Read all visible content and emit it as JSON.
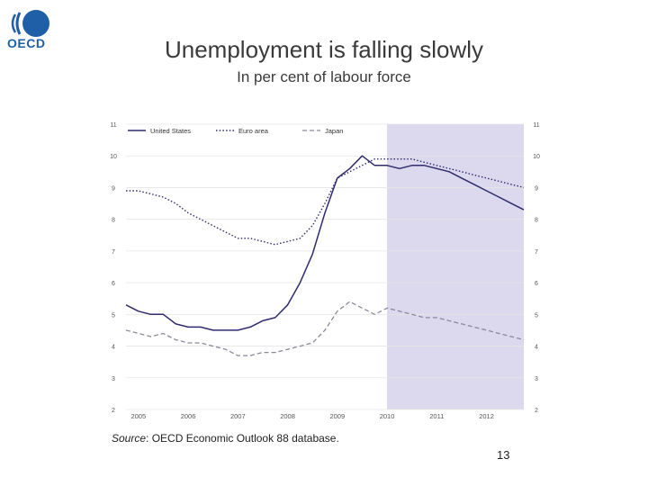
{
  "slide": {
    "title": "Unemployment is falling slowly",
    "subtitle": "In per cent of labour force",
    "source_label": "Source",
    "source_text": ": OECD Economic Outlook 88 database.",
    "page_number": "13",
    "logo_text": "OECD"
  },
  "colors": {
    "us": "#2e2c6e",
    "euro": "#2e2c6e",
    "japan": "#8a8a9a",
    "projection_shade": "#dcd8ee",
    "logo": "#1f5fa8"
  },
  "chart_data": {
    "type": "line",
    "title": "",
    "xlabel": "",
    "ylabel": "",
    "ylim": [
      2,
      11
    ],
    "yticks": [
      2,
      3,
      4,
      5,
      6,
      7,
      8,
      9,
      10,
      11
    ],
    "year_ticks": [
      "2005",
      "2006",
      "2007",
      "2008",
      "2009",
      "2010",
      "2011",
      "2012"
    ],
    "xlim": [
      2004.75,
      2012.75
    ],
    "projection_start": 2010.0,
    "legend_position": "top",
    "grid": true,
    "series": [
      {
        "name": "United States",
        "style": "solid",
        "x": [
          2004.75,
          2005.0,
          2005.25,
          2005.5,
          2005.75,
          2006.0,
          2006.25,
          2006.5,
          2006.75,
          2007.0,
          2007.25,
          2007.5,
          2007.75,
          2008.0,
          2008.25,
          2008.5,
          2008.75,
          2009.0,
          2009.25,
          2009.5,
          2009.75,
          2010.0,
          2010.25,
          2010.5,
          2010.75,
          2011.0,
          2011.25,
          2011.5,
          2011.75,
          2012.0,
          2012.25,
          2012.5,
          2012.75
        ],
        "values": [
          5.3,
          5.1,
          5.0,
          5.0,
          4.7,
          4.6,
          4.6,
          4.5,
          4.5,
          4.5,
          4.6,
          4.8,
          4.9,
          5.3,
          6.0,
          6.9,
          8.2,
          9.3,
          9.6,
          10.0,
          9.7,
          9.7,
          9.6,
          9.7,
          9.7,
          9.6,
          9.5,
          9.3,
          9.1,
          8.9,
          8.7,
          8.5,
          8.3
        ]
      },
      {
        "name": "Euro area",
        "style": "dotted",
        "x": [
          2004.75,
          2005.0,
          2005.25,
          2005.5,
          2005.75,
          2006.0,
          2006.25,
          2006.5,
          2006.75,
          2007.0,
          2007.25,
          2007.5,
          2007.75,
          2008.0,
          2008.25,
          2008.5,
          2008.75,
          2009.0,
          2009.25,
          2009.5,
          2009.75,
          2010.0,
          2010.25,
          2010.5,
          2010.75,
          2011.0,
          2011.25,
          2011.5,
          2011.75,
          2012.0,
          2012.25,
          2012.5,
          2012.75
        ],
        "values": [
          8.9,
          8.9,
          8.8,
          8.7,
          8.5,
          8.2,
          8.0,
          7.8,
          7.6,
          7.4,
          7.4,
          7.3,
          7.2,
          7.3,
          7.4,
          7.8,
          8.5,
          9.3,
          9.5,
          9.7,
          9.9,
          9.9,
          9.9,
          9.9,
          9.8,
          9.7,
          9.6,
          9.5,
          9.4,
          9.3,
          9.2,
          9.1,
          9.0
        ]
      },
      {
        "name": "Japan",
        "style": "dashed",
        "x": [
          2004.75,
          2005.0,
          2005.25,
          2005.5,
          2005.75,
          2006.0,
          2006.25,
          2006.5,
          2006.75,
          2007.0,
          2007.25,
          2007.5,
          2007.75,
          2008.0,
          2008.25,
          2008.5,
          2008.75,
          2009.0,
          2009.25,
          2009.5,
          2009.75,
          2010.0,
          2010.25,
          2010.5,
          2010.75,
          2011.0,
          2011.25,
          2011.5,
          2011.75,
          2012.0,
          2012.25,
          2012.5,
          2012.75
        ],
        "values": [
          4.5,
          4.4,
          4.3,
          4.4,
          4.2,
          4.1,
          4.1,
          4.0,
          3.9,
          3.7,
          3.7,
          3.8,
          3.8,
          3.9,
          4.0,
          4.1,
          4.5,
          5.1,
          5.4,
          5.2,
          5.0,
          5.2,
          5.1,
          5.0,
          4.9,
          4.9,
          4.8,
          4.7,
          4.6,
          4.5,
          4.4,
          4.3,
          4.2
        ]
      }
    ]
  }
}
